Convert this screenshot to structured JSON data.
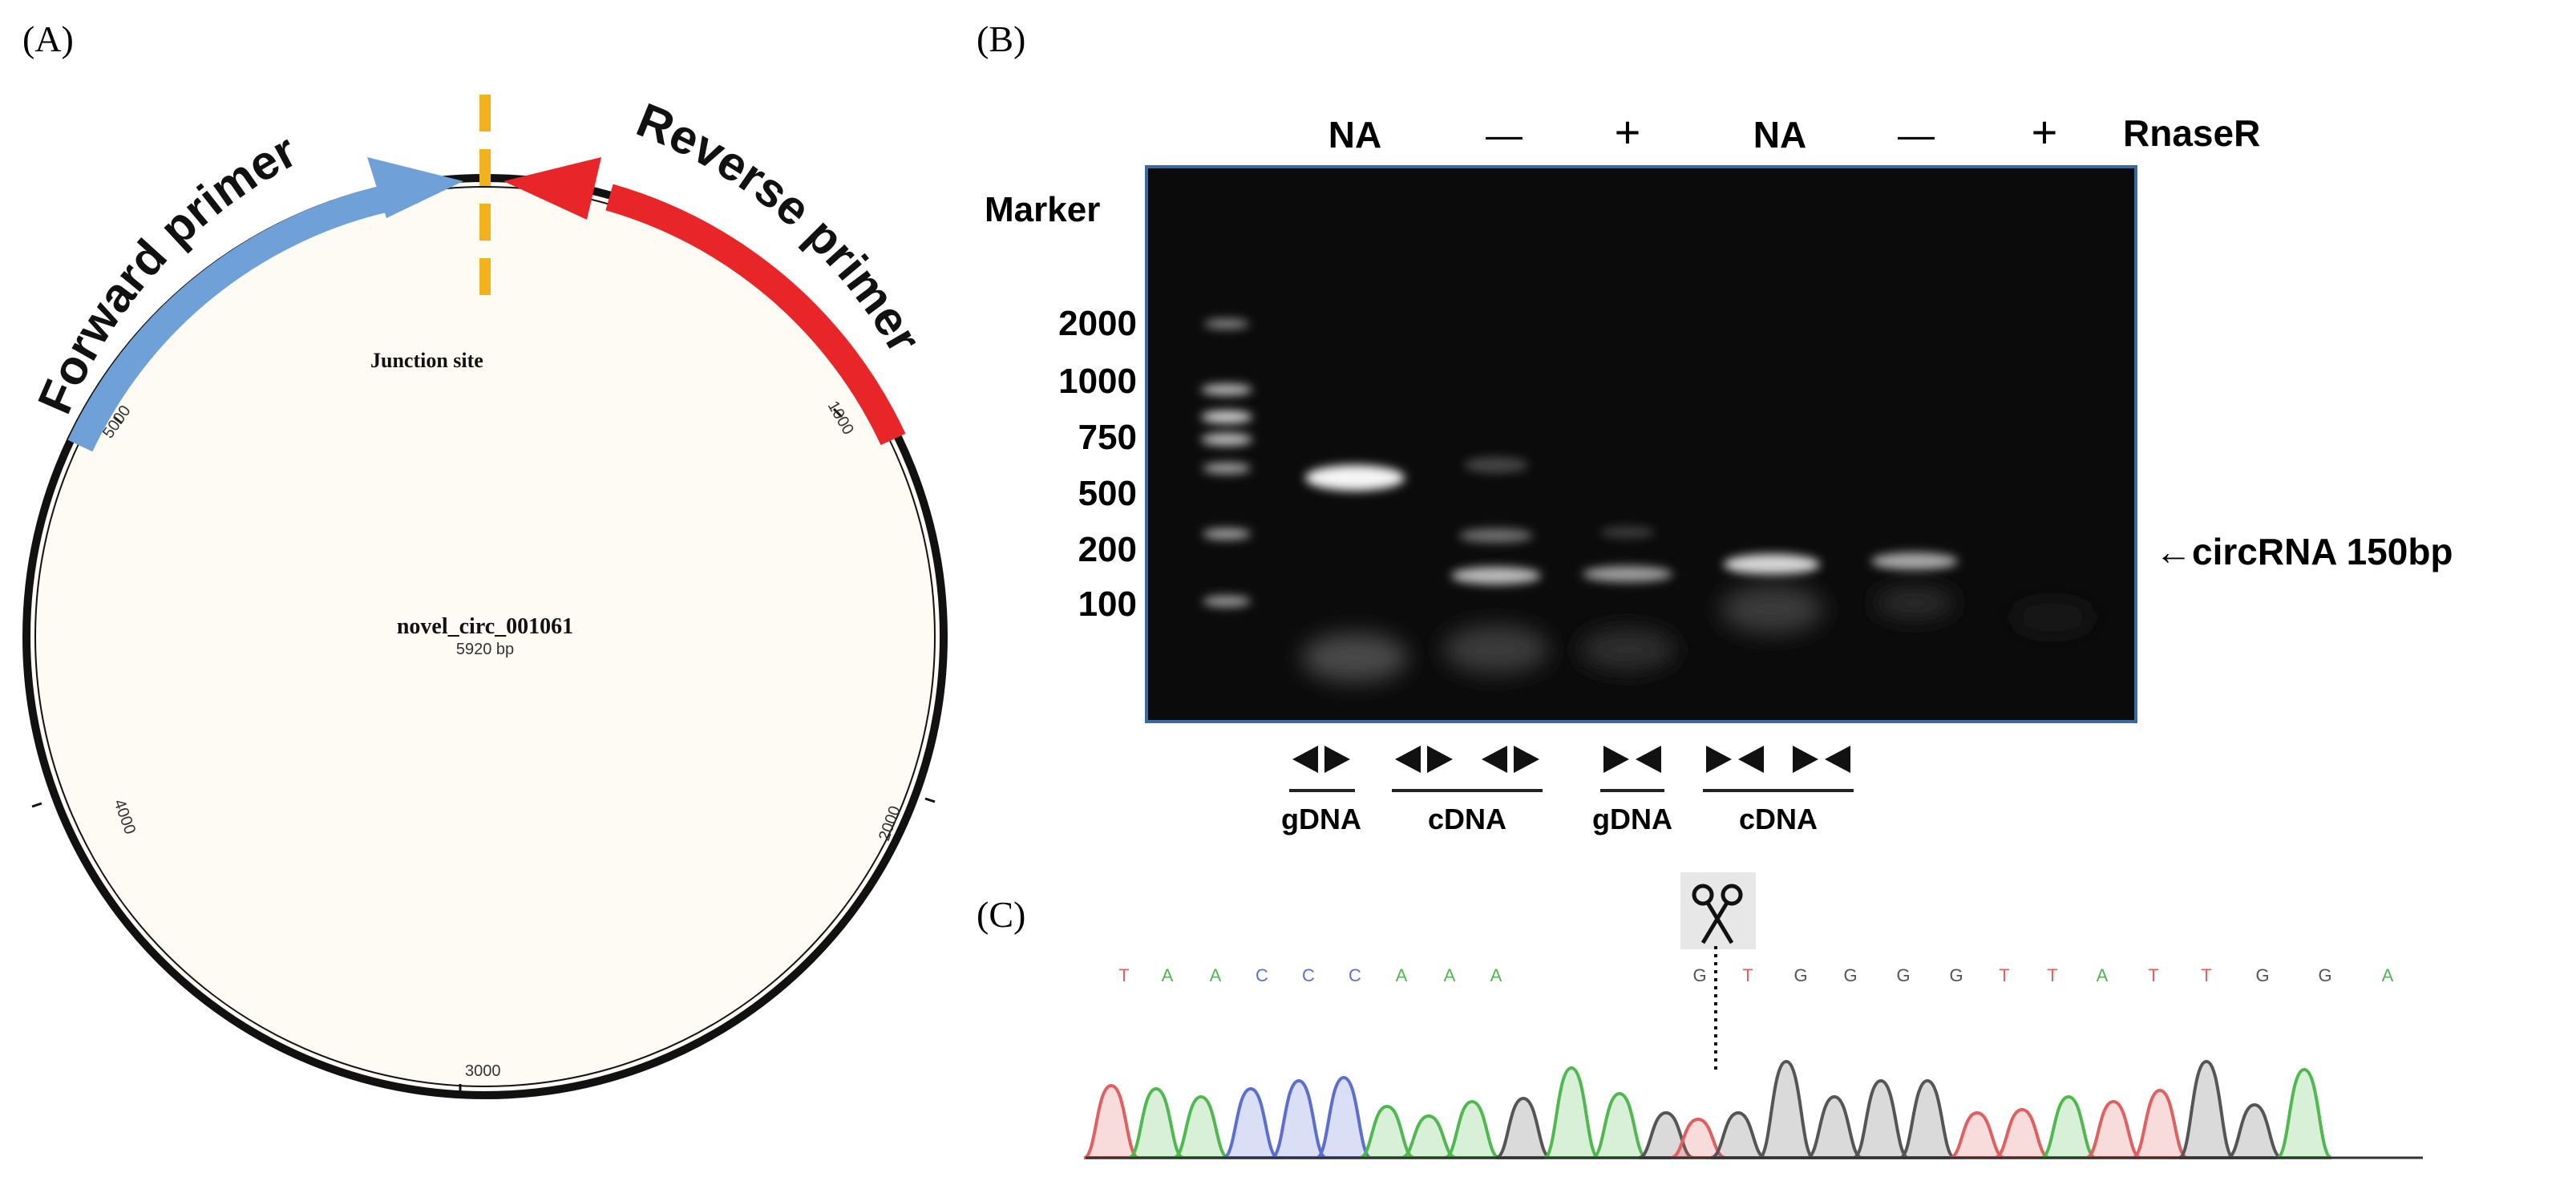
{
  "panel_a": {
    "label": "(A)",
    "forward_primer": "Forward primer",
    "reverse_primer": "Reverse primer",
    "junction_site": "Junction site",
    "circ_name": "novel_circ_001061",
    "circ_length": "5920 bp",
    "tick_labels": [
      "1000",
      "2000",
      "3000",
      "4000",
      "5000"
    ],
    "colors": {
      "forward": "#6fa0d8",
      "reverse": "#e8262a",
      "junction": "#f3b21d",
      "plasmid_fill": "#fdfbf4"
    }
  },
  "panel_b": {
    "label": "(B)",
    "marker": "Marker",
    "rnaser": "RnaseR",
    "lane_headers": [
      "NA",
      "—",
      "+",
      "NA",
      "—",
      "+"
    ],
    "ladder": [
      "2000",
      "1000",
      "750",
      "500",
      "200",
      "100"
    ],
    "annotation": "←circRNA 150bp",
    "groups": [
      "gDNA",
      "cDNA",
      "gDNA",
      "cDNA"
    ]
  },
  "panel_c": {
    "label": "(C)",
    "bases_left": [
      "T",
      "A",
      "A",
      "C",
      "C",
      "C",
      "A",
      "A",
      "A"
    ],
    "bases_right": [
      "G",
      "T",
      "G",
      "G",
      "G",
      "G",
      "T",
      "T",
      "A",
      "T",
      "T",
      "G",
      "G",
      "A"
    ],
    "base_colors": {
      "T": "#e06060",
      "A": "#4fb84f",
      "C": "#5a6fd0",
      "G": "#555555"
    }
  }
}
